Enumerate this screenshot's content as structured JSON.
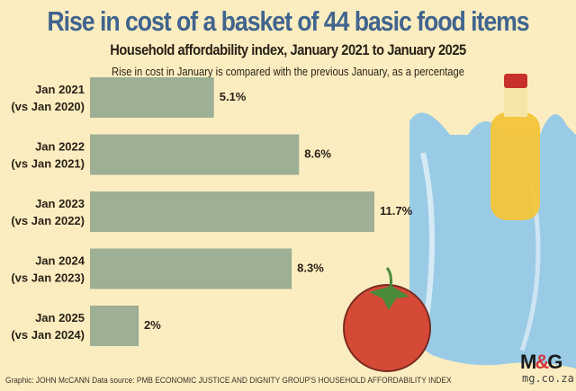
{
  "header": {
    "title": "Rise in cost of a basket of 44 basic food items",
    "subtitle": "Household affordability index, January 2021 to January 2025",
    "note": "Rise in cost in January is compared with the previous January, as a percentage"
  },
  "chart_data": {
    "type": "bar",
    "orientation": "horizontal",
    "title": "Rise in cost of a basket of 44 basic food items",
    "categories": [
      [
        "Jan 2021",
        "(vs Jan 2020)"
      ],
      [
        "Jan 2022",
        "(vs Jan 2021)"
      ],
      [
        "Jan 2023",
        "(vs Jan 2022)"
      ],
      [
        "Jan 2024",
        "(vs Jan 2023)"
      ],
      [
        "Jan 2025",
        "(vs Jan 2024)"
      ]
    ],
    "values": [
      5.1,
      8.6,
      11.7,
      8.3,
      2
    ],
    "labels": [
      "5.1%",
      "8.6%",
      "11.7%",
      "8.3%",
      "2%"
    ],
    "unit": "%",
    "xlim": [
      0,
      12
    ],
    "grid": false,
    "bar_color": "#9daf95"
  },
  "footer": {
    "credit": "Graphic: JOHN McCANN  Data source: PMB ECONOMIC JUSTICE AND DIGNITY GROUP'S HOUSEHOLD AFFORDABILITY INDEX",
    "logo": "M&G",
    "site": "mg.co.za"
  }
}
